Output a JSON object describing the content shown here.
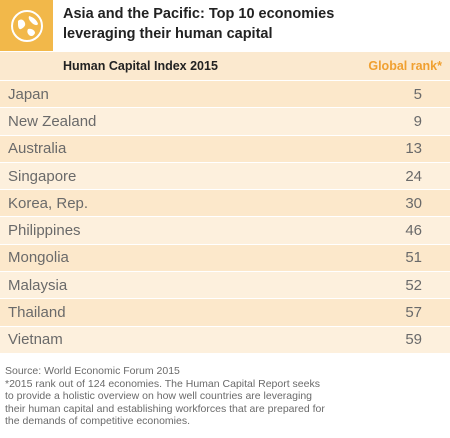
{
  "header": {
    "title_line1": "Asia and the Pacific: Top 10 economies",
    "title_line2": "leveraging their human capital",
    "logo_icon": "globe-icon",
    "logo_color": "#f2b84a"
  },
  "subheader": {
    "left": "Human Capital Index 2015",
    "right": "Global rank*"
  },
  "chart_data": {
    "type": "table",
    "columns": [
      "Human Capital Index 2015",
      "Global rank*"
    ],
    "rows": [
      {
        "country": "Japan",
        "rank": 5
      },
      {
        "country": "New Zealand",
        "rank": 9
      },
      {
        "country": "Australia",
        "rank": 13
      },
      {
        "country": "Singapore",
        "rank": 24
      },
      {
        "country": "Korea, Rep.",
        "rank": 30
      },
      {
        "country": "Philippines",
        "rank": 46
      },
      {
        "country": "Mongolia",
        "rank": 51
      },
      {
        "country": "Malaysia",
        "rank": 52
      },
      {
        "country": "Thailand",
        "rank": 57
      },
      {
        "country": "Vietnam",
        "rank": 59
      }
    ]
  },
  "footer": {
    "source": "Source: World Economic Forum 2015",
    "note_line1": "*2015 rank out of 124 economies. The Human Capital Report seeks",
    "note_line2": "to provide a holistic overview on how well countries are leveraging",
    "note_line3": "their human capital and establishing workforces that are prepared for",
    "note_line4": "the demands of competitive economies."
  }
}
